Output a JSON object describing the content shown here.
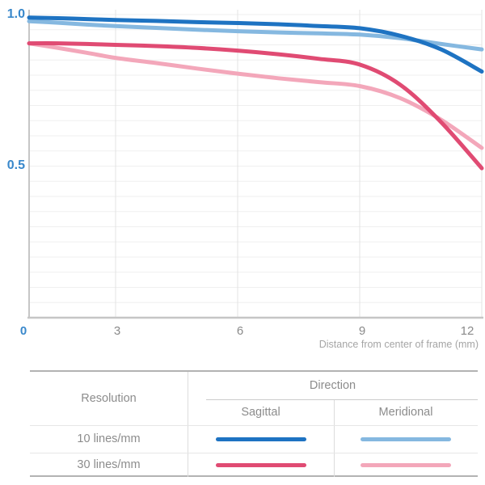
{
  "chart_data": {
    "type": "line",
    "title": "",
    "xlabel": "Distance from center of frame (mm)",
    "ylabel": "",
    "x": [
      0,
      1,
      2,
      3,
      4,
      5,
      6,
      7,
      8,
      9,
      10,
      11,
      12
    ],
    "xlim": [
      0,
      12
    ],
    "ylim": [
      0,
      1.0
    ],
    "grid": "on",
    "legend_position": "table-below",
    "xticks": [
      {
        "value": 0,
        "label": "0"
      },
      {
        "value": 3,
        "label": "3"
      },
      {
        "value": 6,
        "label": "6"
      },
      {
        "value": 9,
        "label": "9"
      },
      {
        "value": 12,
        "label": "12"
      }
    ],
    "yticks": [
      {
        "value": 1.0,
        "label": "1.0"
      },
      {
        "value": 0.5,
        "label": "0.5"
      }
    ],
    "minor_y_gridline_step": 0.05,
    "series": [
      {
        "name": "10 lines/mm Sagittal",
        "color": "#1e73c2",
        "values": [
          0.99,
          0.988,
          0.985,
          0.982,
          0.979,
          0.975,
          0.972,
          0.968,
          0.962,
          0.955,
          0.93,
          0.885,
          0.812
        ]
      },
      {
        "name": "10 lines/mm Meridional",
        "color": "#85b8e0",
        "values": [
          0.978,
          0.973,
          0.967,
          0.962,
          0.956,
          0.95,
          0.945,
          0.941,
          0.938,
          0.934,
          0.922,
          0.903,
          0.885
        ]
      },
      {
        "name": "30 lines/mm Sagittal",
        "color": "#e04b73",
        "values": [
          0.905,
          0.905,
          0.903,
          0.9,
          0.896,
          0.89,
          0.881,
          0.869,
          0.854,
          0.835,
          0.768,
          0.645,
          0.493
        ]
      },
      {
        "name": "30 lines/mm Meridional",
        "color": "#f3a7ba",
        "values": [
          0.905,
          0.89,
          0.874,
          0.857,
          0.84,
          0.822,
          0.805,
          0.79,
          0.777,
          0.764,
          0.724,
          0.653,
          0.56
        ]
      }
    ]
  },
  "legend_table": {
    "resolution_header": "Resolution",
    "direction_header": "Direction",
    "sagittal_header": "Sagittal",
    "meridional_header": "Meridional",
    "rows": [
      {
        "resolution": "10 lines/mm",
        "sagittal_color": "#1e73c2",
        "meridional_color": "#85b8e0"
      },
      {
        "resolution": "30 lines/mm",
        "sagittal_color": "#e04b73",
        "meridional_color": "#f3a7ba"
      }
    ]
  },
  "colors": {
    "accent_tick": "#3988cb",
    "tick_gray": "#8a8a8a",
    "axis_line": "#c6c6c6",
    "minor_gridline": "#efefef",
    "vertical_gridline": "#e3e3e3"
  }
}
